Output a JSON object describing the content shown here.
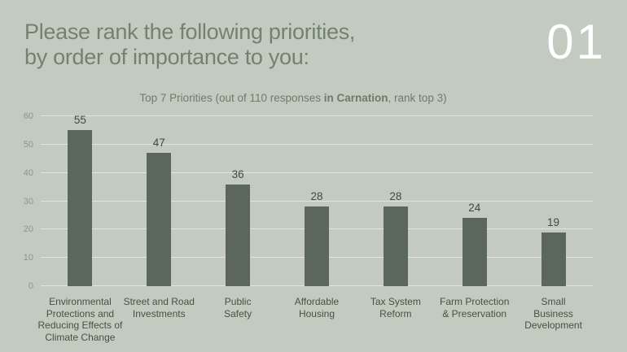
{
  "slide": {
    "title_line1": "Please rank the following priorities,",
    "title_line2": "by order of importance to you:",
    "page_number": "01"
  },
  "colors": {
    "background": "#c3cbc1",
    "bar": "#5b675c",
    "title_text": "#73816f",
    "subtitle_text": "#6d7b6a",
    "tick_text": "#8d9787",
    "category_text": "#46523f",
    "value_text": "#404b3b",
    "gridline": "rgba(255,255,255,0.5)",
    "page_number_text": "#ffffff"
  },
  "chart_data": {
    "type": "bar",
    "title": "Top 7 Priorities (out of 110 responses in Carnation, rank top 3)",
    "title_parts": {
      "pre": "Top 7 Priorities (out of 110 responses ",
      "bold": "in Carnation",
      "post": ", rank top 3)"
    },
    "categories": [
      "Environmental\nProtections and\nReducing Effects of\nClimate Change",
      "Street and Road\nInvestments",
      "Public\nSafety",
      "Affordable\nHousing",
      "Tax System\nReform",
      "Farm Protection\n& Preservation",
      "Small\nBusiness\nDevelopment"
    ],
    "values": [
      55,
      47,
      36,
      28,
      28,
      24,
      19
    ],
    "xlabel": "",
    "ylabel": "",
    "ylim": [
      0,
      60
    ],
    "y_ticks": [
      0,
      10,
      20,
      30,
      40,
      50,
      60
    ],
    "grid": "horizontal",
    "legend": "none"
  }
}
